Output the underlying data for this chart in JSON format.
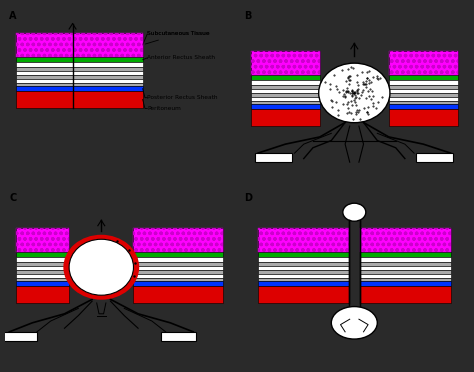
{
  "bg_color": "#2a2a2a",
  "panel_bg": "#ffffff",
  "layer_defs": [
    [
      "#ff00ff",
      0.135
    ],
    [
      "#00aa00",
      0.03
    ],
    [
      "#ffffff",
      0.025
    ],
    [
      "#aaaaaa",
      0.022
    ],
    [
      "#ffffff",
      0.022
    ],
    [
      "#aaaaaa",
      0.022
    ],
    [
      "#ffffff",
      0.022
    ],
    [
      "#aaaaaa",
      0.02
    ],
    [
      "#0033ff",
      0.025
    ],
    [
      "#dd0000",
      0.095
    ]
  ],
  "panel_labels": [
    "A",
    "B",
    "C",
    "D"
  ],
  "label_annotations": [
    "Subcutaneous Tissue",
    "Anterior Rectus Sheath",
    "Posterior Rectus Sheath",
    "Peritoneum"
  ]
}
